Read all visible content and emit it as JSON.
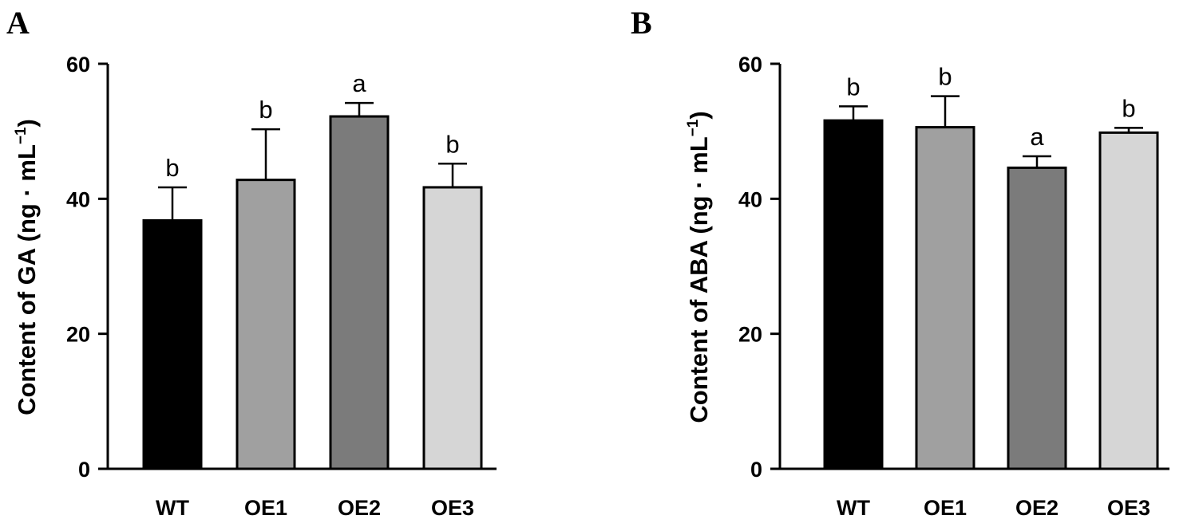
{
  "chart_data": [
    {
      "type": "bar",
      "panel": "A",
      "categories": [
        "WT",
        "OE1",
        "OE2",
        "OE3"
      ],
      "values": [
        36.8,
        42.8,
        52.2,
        41.7
      ],
      "errors": [
        4.9,
        7.5,
        2.0,
        3.5
      ],
      "significance": [
        "b",
        "b",
        "a",
        "b"
      ],
      "colors": [
        "#000000",
        "#a0a0a0",
        "#7b7b7b",
        "#d6d6d6"
      ],
      "ylabel": "Content of GA",
      "ylabel_unit": "(ng · mL",
      "ylabel_exp": "−1",
      "ylabel_close": ")",
      "ylim": [
        0,
        60
      ],
      "yticks": [
        "0",
        "20",
        "40",
        "60"
      ],
      "ytick_values": [
        0,
        20,
        40,
        60
      ],
      "grid": false
    },
    {
      "type": "bar",
      "panel": "B",
      "categories": [
        "WT",
        "OE1",
        "OE2",
        "OE3"
      ],
      "values": [
        51.6,
        50.6,
        44.6,
        49.8
      ],
      "errors": [
        2.1,
        4.6,
        1.7,
        0.7
      ],
      "significance": [
        "b",
        "b",
        "a",
        "b"
      ],
      "colors": [
        "#000000",
        "#a0a0a0",
        "#7b7b7b",
        "#d6d6d6"
      ],
      "ylabel": "Content of ABA",
      "ylabel_unit": "(ng · mL",
      "ylabel_exp": "−1",
      "ylabel_close": ")",
      "ylim": [
        0,
        60
      ],
      "yticks": [
        "0",
        "20",
        "40",
        "60"
      ],
      "ytick_values": [
        0,
        20,
        40,
        60
      ],
      "grid": false
    }
  ]
}
